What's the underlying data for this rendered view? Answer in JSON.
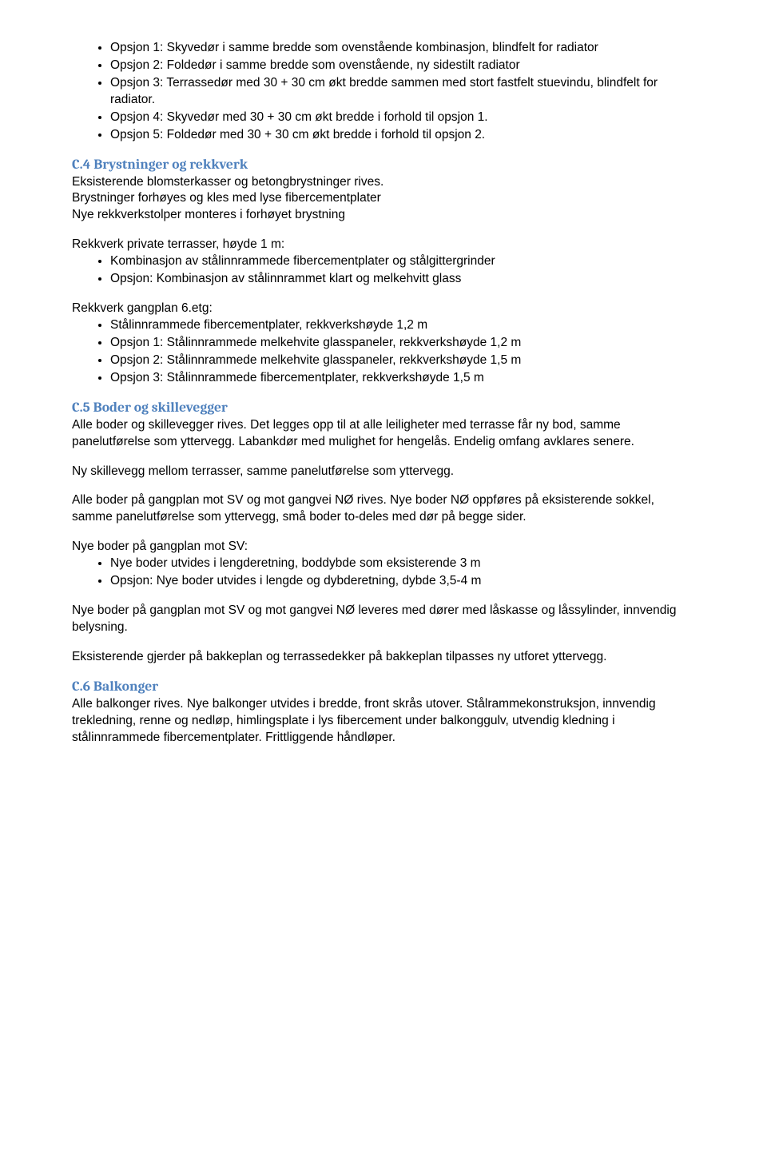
{
  "list1": {
    "i0": "Opsjon 1: Skyvedør i samme bredde som ovenstående kombinasjon, blindfelt for radiator",
    "i1": "Opsjon 2: Foldedør i samme bredde som ovenstående, ny sidestilt radiator",
    "i2": "Opsjon 3: Terrassedør med 30 + 30 cm økt bredde sammen med stort fastfelt stuevindu, blindfelt for radiator.",
    "i3": "Opsjon 4: Skyvedør med 30 + 30 cm økt bredde i forhold til opsjon 1.",
    "i4": "Opsjon 5: Foldedør med 30 + 30 cm økt bredde i forhold til opsjon 2."
  },
  "c4": {
    "heading": "C.4 Brystninger og rekkverk",
    "p1": "Eksisterende blomsterkasser og betongbrystninger rives.\nBrystninger forhøyes og kles med lyse fibercementplater\nNye rekkverkstolper monteres i forhøyet brystning",
    "sub1": "Rekkverk private terrasser, høyde 1 m:",
    "list_a": {
      "i0": "Kombinasjon av stålinnrammede fibercementplater og stålgittergrinder",
      "i1": "Opsjon: Kombinasjon av stålinnrammet klart og melkehvitt glass"
    },
    "sub2": "Rekkverk gangplan 6.etg:",
    "list_b": {
      "i0": "Stålinnrammede fibercementplater, rekkverkshøyde 1,2 m",
      "i1": "Opsjon 1: Stålinnrammede melkehvite glasspaneler, rekkverkshøyde 1,2 m",
      "i2": "Opsjon 2: Stålinnrammede melkehvite glasspaneler, rekkverkshøyde 1,5 m",
      "i3": "Opsjon 3: Stålinnrammede fibercementplater, rekkverkshøyde 1,5 m"
    }
  },
  "c5": {
    "heading": "C.5 Boder og skillevegger",
    "p1": "Alle boder og skillevegger rives. Det legges opp til at alle leiligheter med terrasse får ny bod, samme panelutførelse som yttervegg. Labankdør med mulighet for hengelås. Endelig omfang avklares senere.",
    "p2": "Ny skillevegg mellom terrasser, samme panelutførelse som yttervegg.",
    "p3": "Alle boder på gangplan mot SV og mot gangvei NØ rives. Nye boder NØ oppføres på eksisterende sokkel, samme panelutførelse som yttervegg, små boder to-deles med dør på begge sider.",
    "sub1": "Nye boder på gangplan mot SV:",
    "list_a": {
      "i0": "Nye boder utvides i lengderetning, boddybde som eksisterende 3 m",
      "i1": "Opsjon: Nye boder utvides i lengde og dybderetning, dybde 3,5-4 m"
    },
    "p4": "Nye boder på gangplan mot SV og mot gangvei NØ leveres med dører med låskasse og låssylinder, innvendig belysning.",
    "p5": "Eksisterende gjerder på bakkeplan og terrassedekker på bakkeplan tilpasses ny utforet yttervegg."
  },
  "c6": {
    "heading": "C.6 Balkonger",
    "p1": "Alle balkonger rives. Nye balkonger utvides i bredde, front skrås utover. Stålrammekonstruksjon, innvendig trekledning, renne og nedløp, himlingsplate i lys fibercement under balkonggulv, utvendig kledning i stålinnrammede fibercementplater. Frittliggende håndløper."
  }
}
